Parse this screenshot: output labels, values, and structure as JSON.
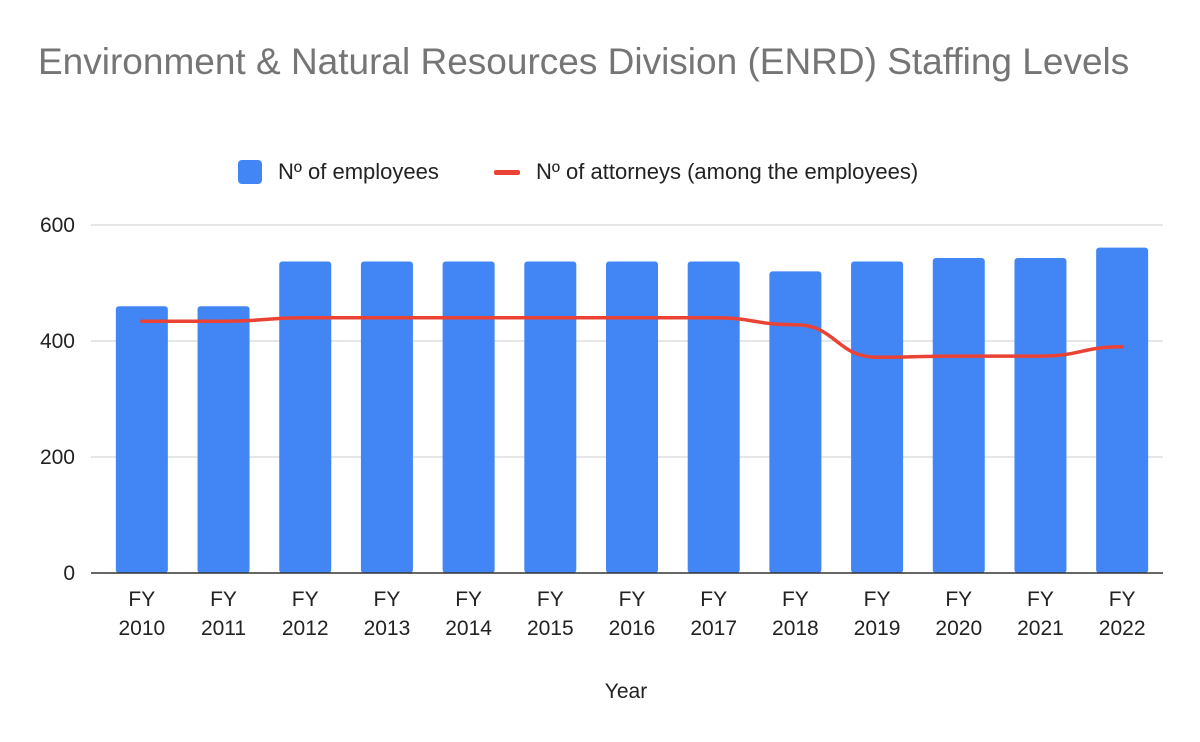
{
  "chart_data": {
    "type": "bar",
    "title": "Environment & Natural Resources Division (ENRD) Staffing Levels",
    "xlabel": "Year",
    "ylabel": "",
    "categories": [
      [
        "FY",
        "2010"
      ],
      [
        "FY",
        "2011"
      ],
      [
        "FY",
        "2012"
      ],
      [
        "FY",
        "2013"
      ],
      [
        "FY",
        "2014"
      ],
      [
        "FY",
        "2015"
      ],
      [
        "FY",
        "2016"
      ],
      [
        "FY",
        "2017"
      ],
      [
        "FY",
        "2018"
      ],
      [
        "FY",
        "2019"
      ],
      [
        "FY",
        "2020"
      ],
      [
        "FY",
        "2021"
      ],
      [
        "FY",
        "2022"
      ]
    ],
    "series": [
      {
        "name": "Nº of employees",
        "type": "bar",
        "color": "#4285f4",
        "values": [
          460,
          460,
          537,
          537,
          537,
          537,
          537,
          537,
          520,
          537,
          543,
          543,
          561
        ]
      },
      {
        "name": "Nº of attorneys (among the employees)",
        "type": "line",
        "color": "#ea4335",
        "values": [
          434,
          434,
          440,
          440,
          440,
          440,
          440,
          440,
          428,
          372,
          374,
          374,
          390
        ]
      }
    ],
    "ylim": [
      0,
      600
    ],
    "yticks": [
      0,
      200,
      400,
      600
    ],
    "grid": true,
    "legend_position": "top"
  },
  "colors": {
    "title": "#757575",
    "text": "#222222",
    "grid": "#cccccc",
    "axis": "#333333"
  }
}
